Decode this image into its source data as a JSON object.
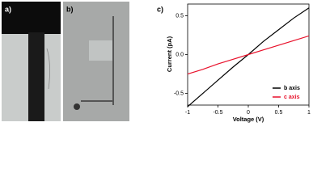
{
  "panel_labels": [
    "a)",
    "b)",
    "c)"
  ],
  "chart_data": {
    "type": "line",
    "x_label": "Voltage (V)",
    "y_label": "Current (pA)",
    "x": [
      -1,
      -0.75,
      -0.5,
      -0.25,
      0,
      0.25,
      0.5,
      0.75,
      1
    ],
    "series": [
      {
        "name": "b axis",
        "color": "#000000",
        "values": [
          -0.67,
          -0.5,
          -0.33,
          -0.16,
          0,
          0.17,
          0.32,
          0.47,
          0.6
        ]
      },
      {
        "name": "c axis",
        "color": "#e8102a",
        "values": [
          -0.25,
          -0.19,
          -0.12,
          -0.06,
          0,
          0.06,
          0.12,
          0.18,
          0.24
        ]
      }
    ],
    "xlim": [
      -1,
      1
    ],
    "xticks": [
      -1,
      -0.5,
      0,
      0.5,
      1
    ],
    "ylim": [
      -0.65,
      0.65
    ],
    "yticks": [
      -0.5,
      {
        "value": 0,
        "label": "0.0"
      },
      0.5
    ],
    "legend": "lower right"
  }
}
